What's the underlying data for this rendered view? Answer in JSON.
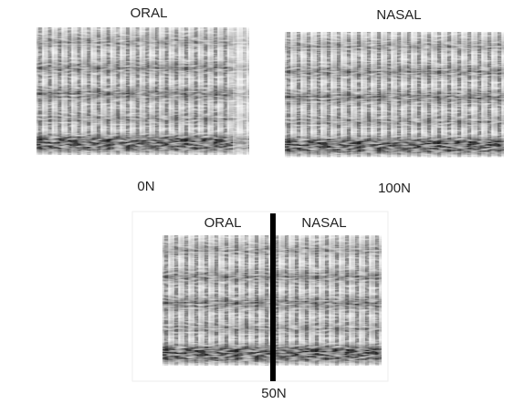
{
  "top": {
    "left": {
      "title": "ORAL",
      "caption": "0N"
    },
    "right": {
      "title": "NASAL",
      "caption": "100N"
    }
  },
  "bottom": {
    "left_title": "ORAL",
    "right_title": "NASAL",
    "caption": "50N"
  }
}
